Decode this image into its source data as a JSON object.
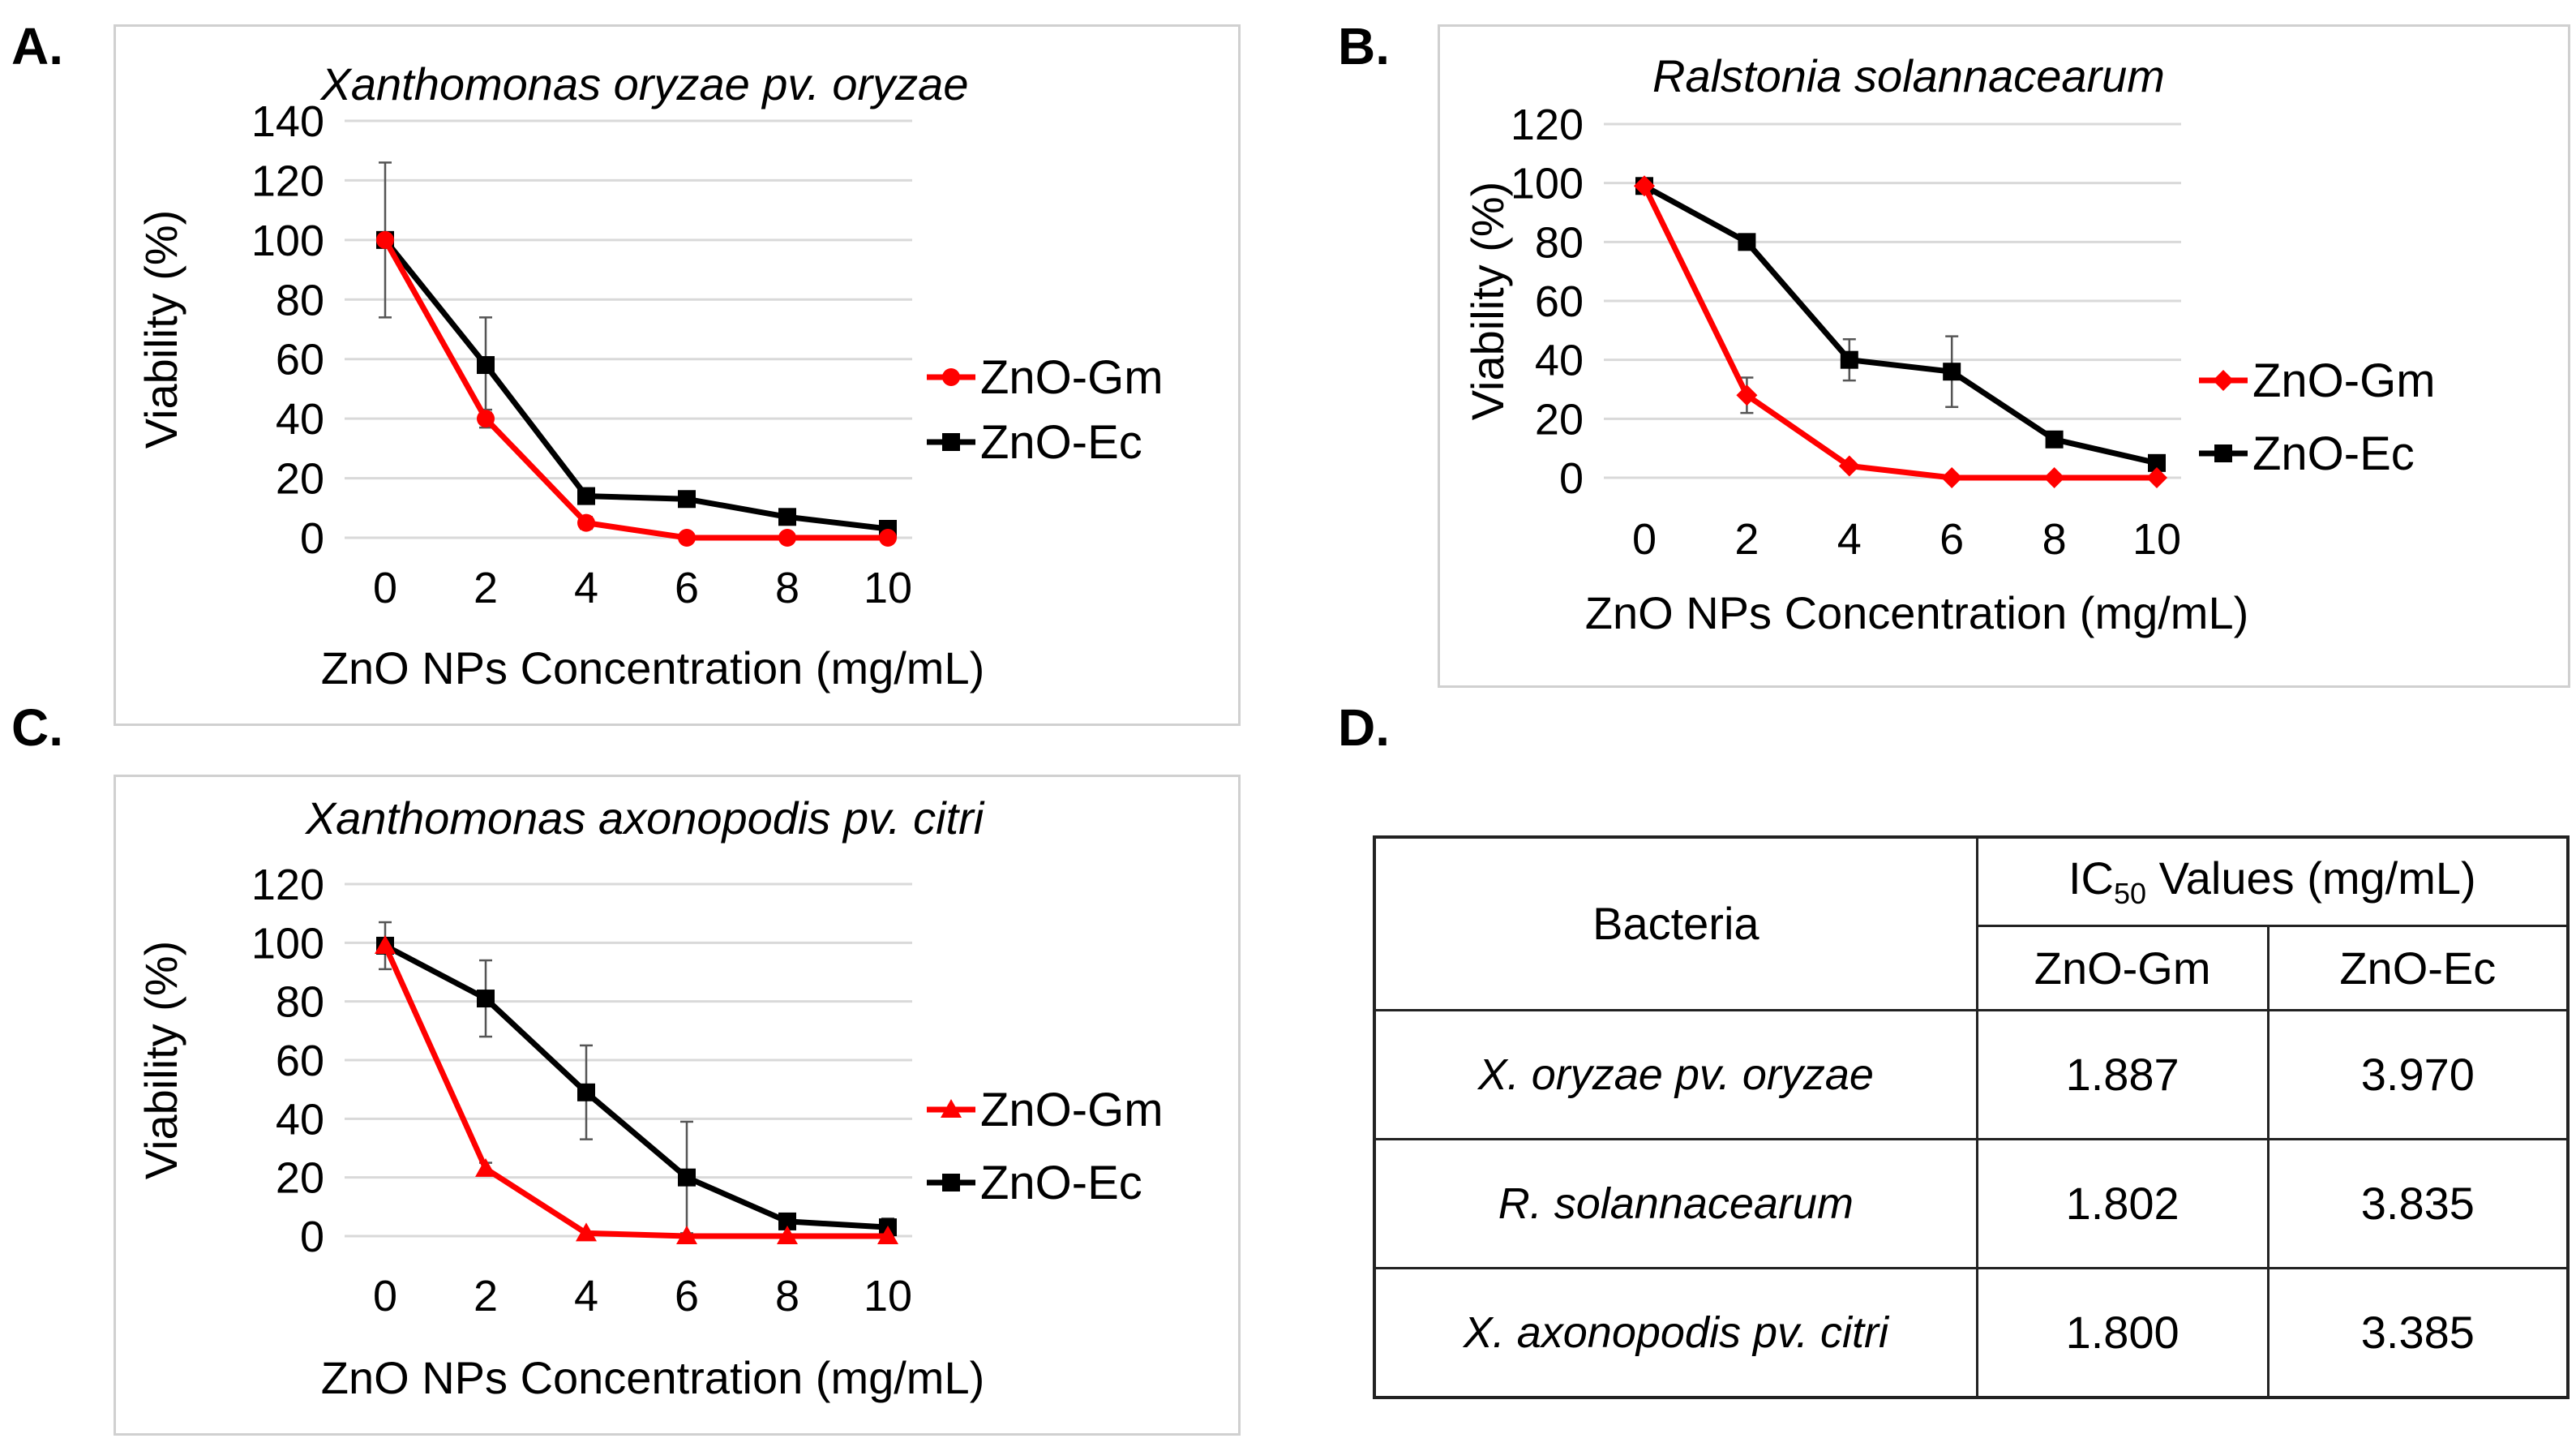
{
  "panels": {
    "a": "A.",
    "b": "B.",
    "c": "C.",
    "d": "D."
  },
  "colors": {
    "gm": "#ff0000",
    "ec": "#000000",
    "grid": "#d9d9d9",
    "frame": "#d0d0d0"
  },
  "chart_data": [
    {
      "id": "A",
      "type": "line",
      "title": "Xanthomonas oryzae pv. oryzae",
      "xlabel": "ZnO NPs Concentration (mg/mL)",
      "ylabel": "Viability (%)",
      "categories": [
        "0",
        "2",
        "4",
        "6",
        "8",
        "10"
      ],
      "ylim": [
        0,
        140
      ],
      "yticks": [
        "0",
        "20",
        "40",
        "60",
        "80",
        "100",
        "120",
        "140"
      ],
      "grid": true,
      "legend": "right",
      "series": [
        {
          "name": "ZnO-Gm",
          "marker": "circle",
          "values": [
            100,
            40,
            5,
            0,
            0,
            0
          ],
          "errors": [
            0,
            3,
            2,
            0,
            0,
            0
          ]
        },
        {
          "name": "ZnO-Ec",
          "marker": "square",
          "values": [
            100,
            58,
            14,
            13,
            7,
            3
          ],
          "errors": [
            26,
            16,
            2,
            2,
            1,
            1
          ]
        }
      ]
    },
    {
      "id": "B",
      "type": "line",
      "title": "Ralstonia solannacearum",
      "xlabel": "ZnO NPs Concentration (mg/mL)",
      "ylabel": "Viability (%)",
      "categories": [
        "0",
        "2",
        "4",
        "6",
        "8",
        "10"
      ],
      "ylim": [
        0,
        120
      ],
      "yticks": [
        "0",
        "20",
        "40",
        "60",
        "80",
        "100",
        "120"
      ],
      "grid": true,
      "legend": "right",
      "series": [
        {
          "name": "ZnO-Gm",
          "marker": "diamond",
          "values": [
            99,
            28,
            4,
            0,
            0,
            0
          ],
          "errors": [
            0,
            6,
            1,
            0,
            0,
            0
          ]
        },
        {
          "name": "ZnO-Ec",
          "marker": "square",
          "values": [
            99,
            80,
            40,
            36,
            13,
            5
          ],
          "errors": [
            2,
            2,
            7,
            12,
            1,
            1
          ]
        }
      ]
    },
    {
      "id": "C",
      "type": "line",
      "title": "Xanthomonas axonopodis pv. citri",
      "xlabel": "ZnO NPs Concentration (mg/mL)",
      "ylabel": "Viability (%)",
      "categories": [
        "0",
        "2",
        "4",
        "6",
        "8",
        "10"
      ],
      "ylim": [
        0,
        120
      ],
      "yticks": [
        "0",
        "20",
        "40",
        "60",
        "80",
        "100",
        "120"
      ],
      "grid": true,
      "legend": "right",
      "series": [
        {
          "name": "ZnO-Gm",
          "marker": "triangle",
          "values": [
            99,
            23,
            1,
            0,
            0,
            0
          ],
          "errors": [
            0,
            2,
            0,
            0,
            0,
            0
          ]
        },
        {
          "name": "ZnO-Ec",
          "marker": "square",
          "values": [
            99,
            81,
            49,
            20,
            5,
            3
          ],
          "errors": [
            8,
            13,
            16,
            19,
            1,
            3
          ]
        }
      ]
    }
  ],
  "ic50_table": {
    "header_bacteria": "Bacteria",
    "header_ic50_prefix": "IC",
    "header_ic50_sub": "50",
    "header_ic50_suffix": " Values (mg/mL)",
    "col_gm": "ZnO-Gm",
    "col_ec": "ZnO-Ec",
    "rows": [
      {
        "bacteria": "X. oryzae pv. oryzae",
        "gm": "1.887",
        "ec": "3.970"
      },
      {
        "bacteria": "R. solannacearum",
        "gm": "1.802",
        "ec": "3.835"
      },
      {
        "bacteria": "X. axonopodis pv. citri",
        "gm": "1.800",
        "ec": "3.385"
      }
    ]
  }
}
